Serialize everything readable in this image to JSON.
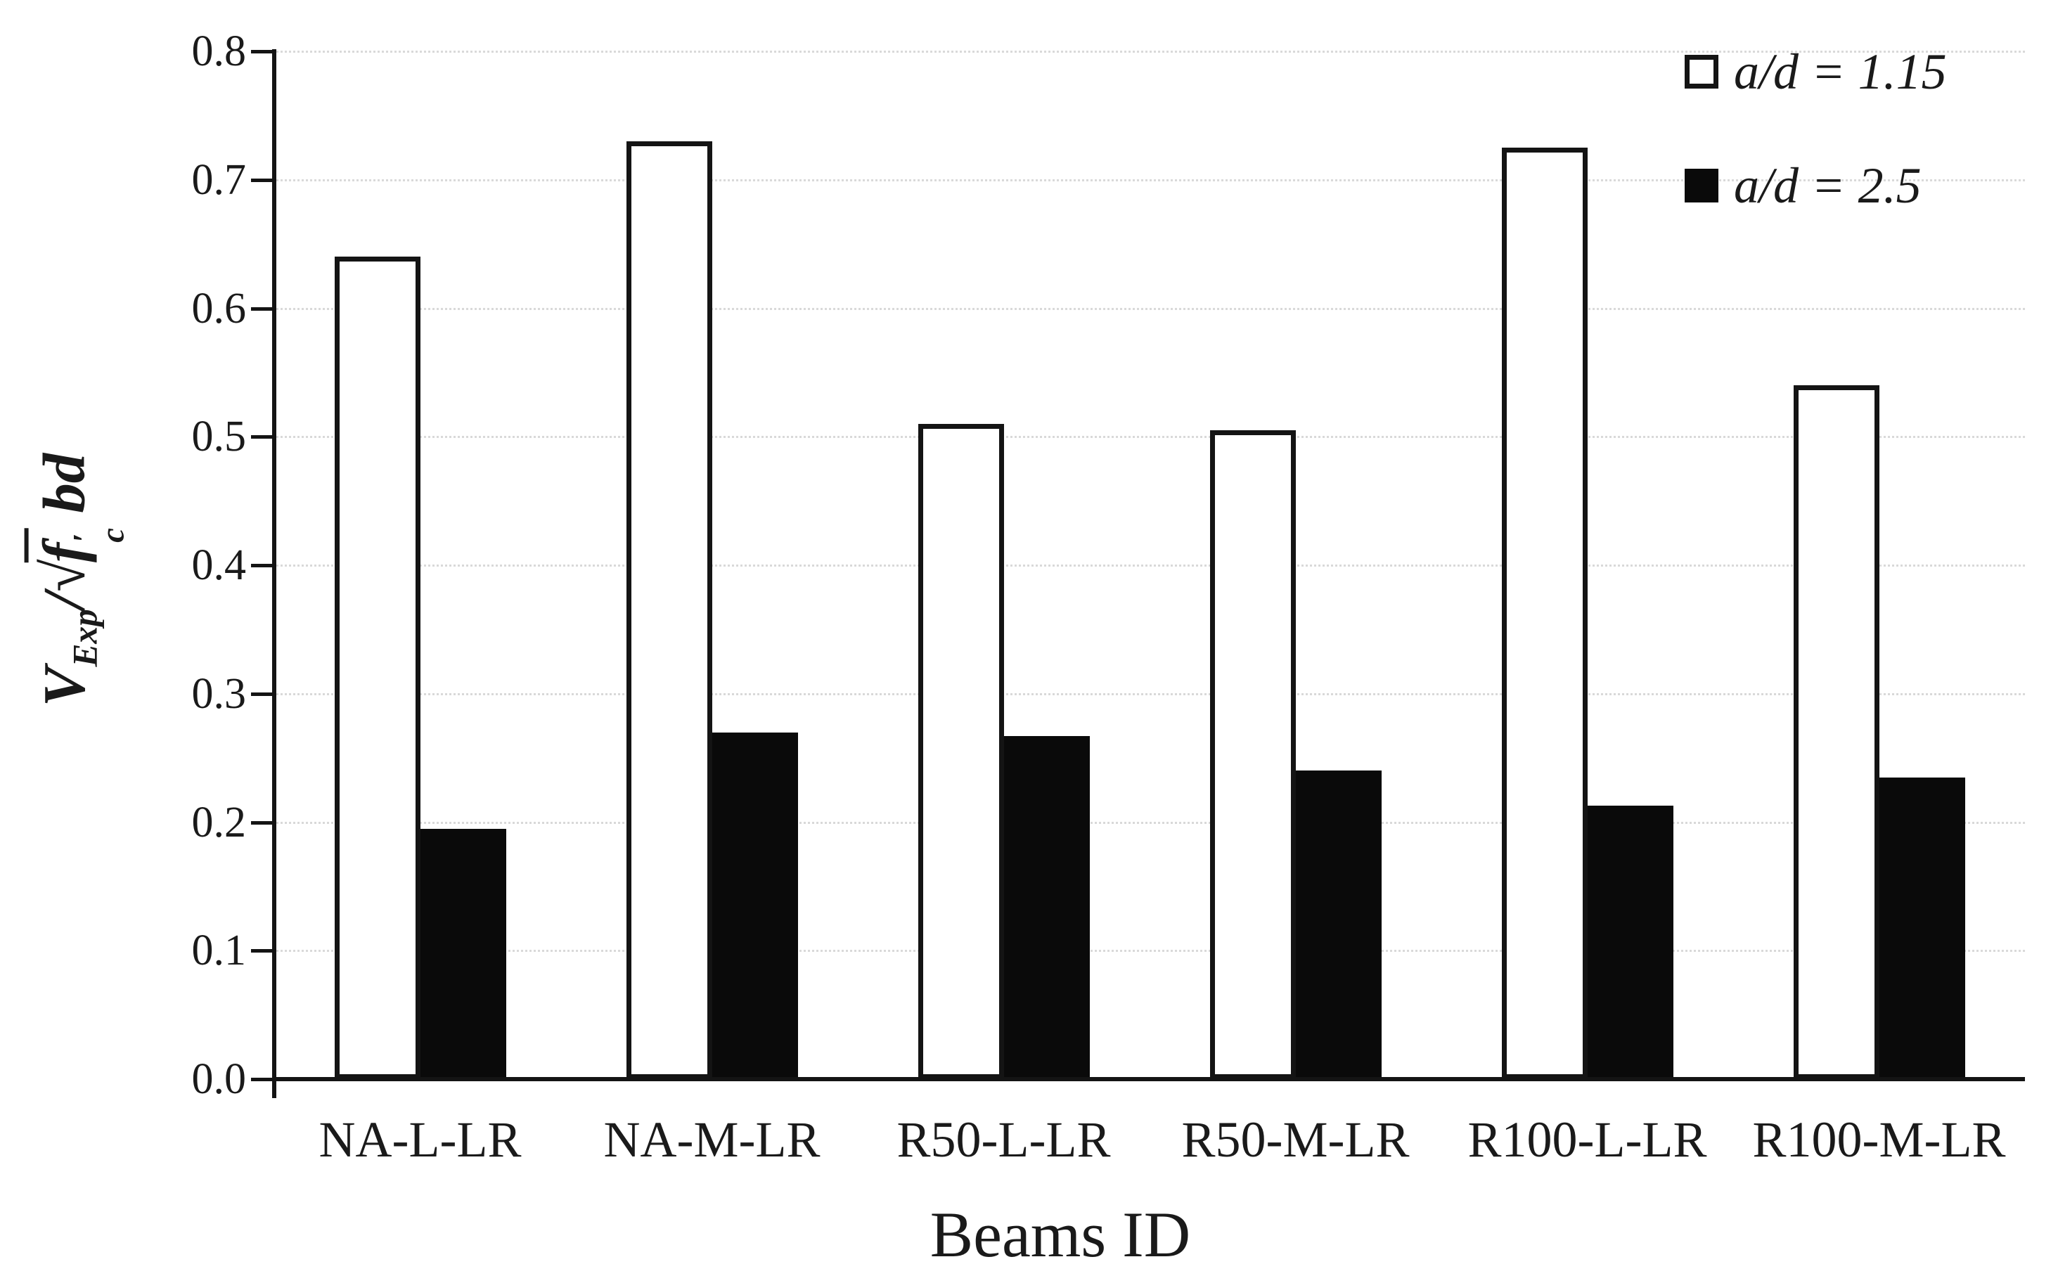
{
  "chart_data": {
    "type": "bar",
    "title": "",
    "categories": [
      "NA-L-LR",
      "NA-M-LR",
      "R50-L-LR",
      "R50-M-LR",
      "R100-L-LR",
      "R100-M-LR"
    ],
    "series": [
      {
        "name": "a/d = 1.15",
        "style": "white",
        "values": [
          0.64,
          0.73,
          0.51,
          0.505,
          0.725,
          0.54
        ]
      },
      {
        "name": "a/d = 2.5",
        "style": "black",
        "values": [
          0.195,
          0.27,
          0.267,
          0.24,
          0.213,
          0.235
        ]
      }
    ],
    "xlabel": "Beams ID",
    "ylabel": "V_Exp/√(f′_c) bd",
    "ylabel_parts": {
      "numerator": "V",
      "numerator_sub": "Exp",
      "divide": "/",
      "radical": "√",
      "radicand": "f",
      "radicand_prime": "′",
      "radicand_sub": "c",
      "tail": "bd"
    },
    "ylim": [
      0,
      0.8
    ],
    "yticks": [
      0,
      0.1,
      0.2,
      0.3,
      0.4,
      0.5,
      0.6,
      0.7,
      0.8
    ],
    "ytick_format_decimals": 1,
    "grid": "horizontal-dotted",
    "legend_position": "top-right"
  },
  "colors": {
    "background": "#ffffff",
    "axis": "#141414",
    "gridline": "#d9d9d9",
    "text": "#1a1a1a",
    "bar_white_fill": "#ffffff",
    "bar_black_fill": "#0a0a0a",
    "bar_border": "#141414"
  }
}
